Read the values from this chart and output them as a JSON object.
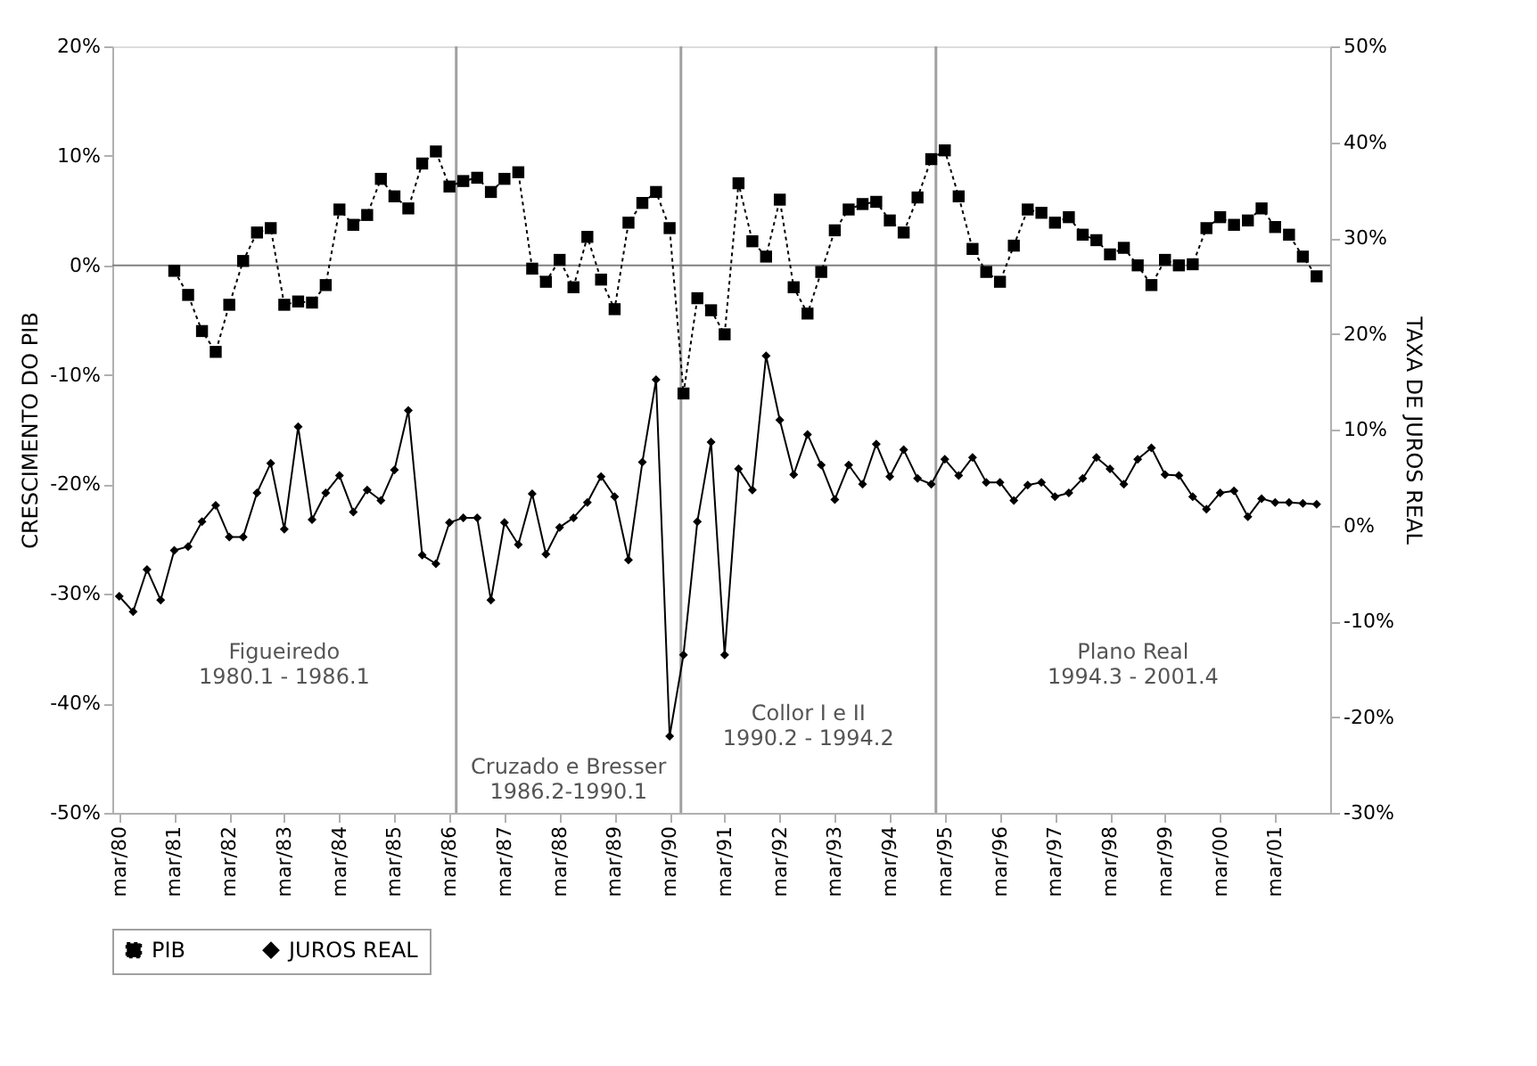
{
  "chart_data": {
    "type": "line",
    "ylabel": "CRESCIMENTO DO PIB",
    "y2label": "TAXA DE JUROS REAL",
    "x": [
      "1980-03",
      "1980-06",
      "1980-09",
      "1980-12",
      "1981-03",
      "1981-06",
      "1981-09",
      "1981-12",
      "1982-03",
      "1982-06",
      "1982-09",
      "1982-12",
      "1983-03",
      "1983-06",
      "1983-09",
      "1983-12",
      "1984-03",
      "1984-06",
      "1984-09",
      "1984-12",
      "1985-03",
      "1985-06",
      "1985-09",
      "1985-12",
      "1986-03",
      "1986-06",
      "1986-09",
      "1986-12",
      "1987-03",
      "1987-06",
      "1987-09",
      "1987-12",
      "1988-03",
      "1988-06",
      "1988-09",
      "1988-12",
      "1989-03",
      "1989-06",
      "1989-09",
      "1989-12",
      "1990-03",
      "1990-06",
      "1990-09",
      "1990-12",
      "1991-03",
      "1991-06",
      "1991-09",
      "1991-12",
      "1992-03",
      "1992-06",
      "1992-09",
      "1992-12",
      "1993-03",
      "1993-06",
      "1993-09",
      "1993-12",
      "1994-03",
      "1994-06",
      "1994-09",
      "1994-12",
      "1995-03",
      "1995-06",
      "1995-09",
      "1995-12",
      "1996-03",
      "1996-06",
      "1996-09",
      "1996-12",
      "1997-03",
      "1997-06",
      "1997-09",
      "1997-12",
      "1998-03",
      "1998-06",
      "1998-09",
      "1998-12",
      "1999-03",
      "1999-06",
      "1999-09",
      "1999-12",
      "2000-03",
      "2000-06",
      "2000-09",
      "2000-12",
      "2001-03",
      "2001-06",
      "2001-09",
      "2001-12"
    ],
    "series": [
      {
        "name": "PIB",
        "color": "#000000",
        "marker": "square",
        "line_style": "dotted",
        "values": [
          null,
          null,
          null,
          null,
          -0.5,
          -2.7,
          -6.0,
          -7.9,
          -3.6,
          0.4,
          3.0,
          3.4,
          -3.6,
          -3.3,
          -3.4,
          -1.8,
          5.1,
          3.7,
          4.6,
          7.9,
          6.3,
          5.2,
          9.3,
          10.4,
          7.2,
          7.7,
          8.0,
          6.7,
          7.9,
          8.5,
          -0.3,
          -1.5,
          0.5,
          -2.0,
          2.6,
          -1.3,
          -4.0,
          3.9,
          5.7,
          6.7,
          3.4,
          -11.7,
          -3.0,
          -4.1,
          -6.3,
          7.5,
          2.2,
          0.8,
          6.0,
          -2.0,
          -4.4,
          -0.6,
          3.2,
          5.1,
          5.6,
          5.8,
          4.1,
          3.0,
          6.2,
          9.7,
          10.5,
          6.3,
          1.5,
          -0.6,
          -1.5,
          1.8,
          5.1,
          4.8,
          3.9,
          4.4,
          2.8,
          2.3,
          1.0,
          1.6,
          0.0,
          -1.8,
          0.5,
          0.0,
          0.1,
          3.4,
          4.4,
          3.7,
          4.1,
          5.2,
          3.5,
          2.8,
          0.8,
          -1.0
        ]
      },
      {
        "name": "JUROS REAL",
        "color": "#000000",
        "marker": "diamond",
        "line_style": "solid",
        "axis": "y2",
        "values": [
          -7.4,
          -9.0,
          -4.6,
          -7.8,
          -2.6,
          -2.2,
          0.4,
          2.1,
          -1.2,
          -1.2,
          3.4,
          6.5,
          -0.4,
          10.3,
          0.6,
          3.4,
          5.2,
          1.4,
          3.7,
          2.6,
          5.8,
          12.0,
          -3.1,
          -4.0,
          0.3,
          0.8,
          0.8,
          -7.8,
          0.3,
          -2.0,
          3.3,
          -3.0,
          -0.2,
          0.8,
          2.4,
          5.1,
          3.0,
          -3.6,
          6.6,
          15.2,
          -22.0,
          -13.5,
          0.4,
          8.7,
          -13.5,
          5.9,
          3.7,
          17.7,
          11.0,
          5.3,
          9.5,
          6.3,
          2.7,
          6.3,
          4.3,
          8.5,
          5.1,
          7.9,
          4.9,
          4.3,
          6.9,
          5.2,
          7.1,
          4.5,
          4.5,
          2.6,
          4.2,
          4.5,
          3.0,
          3.4,
          4.9,
          7.1,
          5.9,
          4.3,
          6.9,
          8.1,
          5.3,
          5.2,
          3.0,
          1.7,
          3.4,
          3.6,
          0.9,
          2.8,
          2.4,
          2.4,
          2.3,
          2.2
        ]
      }
    ],
    "xlim": [
      "1980-01-15",
      "2002-03-01"
    ],
    "xticks": [
      {
        "value": "1980-03",
        "label": "mar/80"
      },
      {
        "value": "1981-03",
        "label": "mar/81"
      },
      {
        "value": "1982-03",
        "label": "mar/82"
      },
      {
        "value": "1983-03",
        "label": "mar/83"
      },
      {
        "value": "1984-03",
        "label": "mar/84"
      },
      {
        "value": "1985-03",
        "label": "mar/85"
      },
      {
        "value": "1986-03",
        "label": "mar/86"
      },
      {
        "value": "1987-03",
        "label": "mar/87"
      },
      {
        "value": "1988-03",
        "label": "mar/88"
      },
      {
        "value": "1989-03",
        "label": "mar/89"
      },
      {
        "value": "1990-03",
        "label": "mar/90"
      },
      {
        "value": "1991-03",
        "label": "mar/91"
      },
      {
        "value": "1992-03",
        "label": "mar/92"
      },
      {
        "value": "1993-03",
        "label": "mar/93"
      },
      {
        "value": "1994-03",
        "label": "mar/94"
      },
      {
        "value": "1995-03",
        "label": "mar/95"
      },
      {
        "value": "1996-03",
        "label": "mar/96"
      },
      {
        "value": "1997-03",
        "label": "mar/97"
      },
      {
        "value": "1998-03",
        "label": "mar/98"
      },
      {
        "value": "1999-03",
        "label": "mar/99"
      },
      {
        "value": "2000-03",
        "label": "mar/00"
      },
      {
        "value": "2001-03",
        "label": "mar/01"
      }
    ],
    "ylim": [
      -50,
      20
    ],
    "yticks": [
      {
        "value": -50,
        "label": "-50%"
      },
      {
        "value": -40,
        "label": "-40%"
      },
      {
        "value": -30,
        "label": "-30%"
      },
      {
        "value": -20,
        "label": "-20%"
      },
      {
        "value": -10,
        "label": "-10%"
      },
      {
        "value": 0,
        "label": "0%"
      },
      {
        "value": 10,
        "label": "10%"
      },
      {
        "value": 20,
        "label": "20%"
      }
    ],
    "y2lim": [
      -30,
      50
    ],
    "y2ticks": [
      {
        "value": -30,
        "label": "-30%"
      },
      {
        "value": -20,
        "label": "-20%"
      },
      {
        "value": -10,
        "label": "-10%"
      },
      {
        "value": 0,
        "label": "0%"
      },
      {
        "value": 10,
        "label": "10%"
      },
      {
        "value": 20,
        "label": "20%"
      },
      {
        "value": 30,
        "label": "30%"
      },
      {
        "value": 40,
        "label": "40%"
      },
      {
        "value": 50,
        "label": "50%"
      }
    ],
    "ref_lines": [
      {
        "axis": "y",
        "value": 0,
        "color": "#808080"
      },
      {
        "axis": "x",
        "value": "1986-04-15",
        "color": "#a0a0a0"
      },
      {
        "axis": "x",
        "value": "1990-05-15",
        "color": "#a0a0a0"
      },
      {
        "axis": "x",
        "value": "1995-01-01",
        "color": "#a0a0a0"
      }
    ],
    "annotations": [
      "Figueiredo\n1980.1 - 1986.1",
      "Cruzado e Bresser\n1986.2-1990.1",
      "Collor I e II\n1990.2 - 1994.2",
      "Plano Real\n1994.3 - 2001.4"
    ],
    "grid": false,
    "legend": "bottom"
  }
}
